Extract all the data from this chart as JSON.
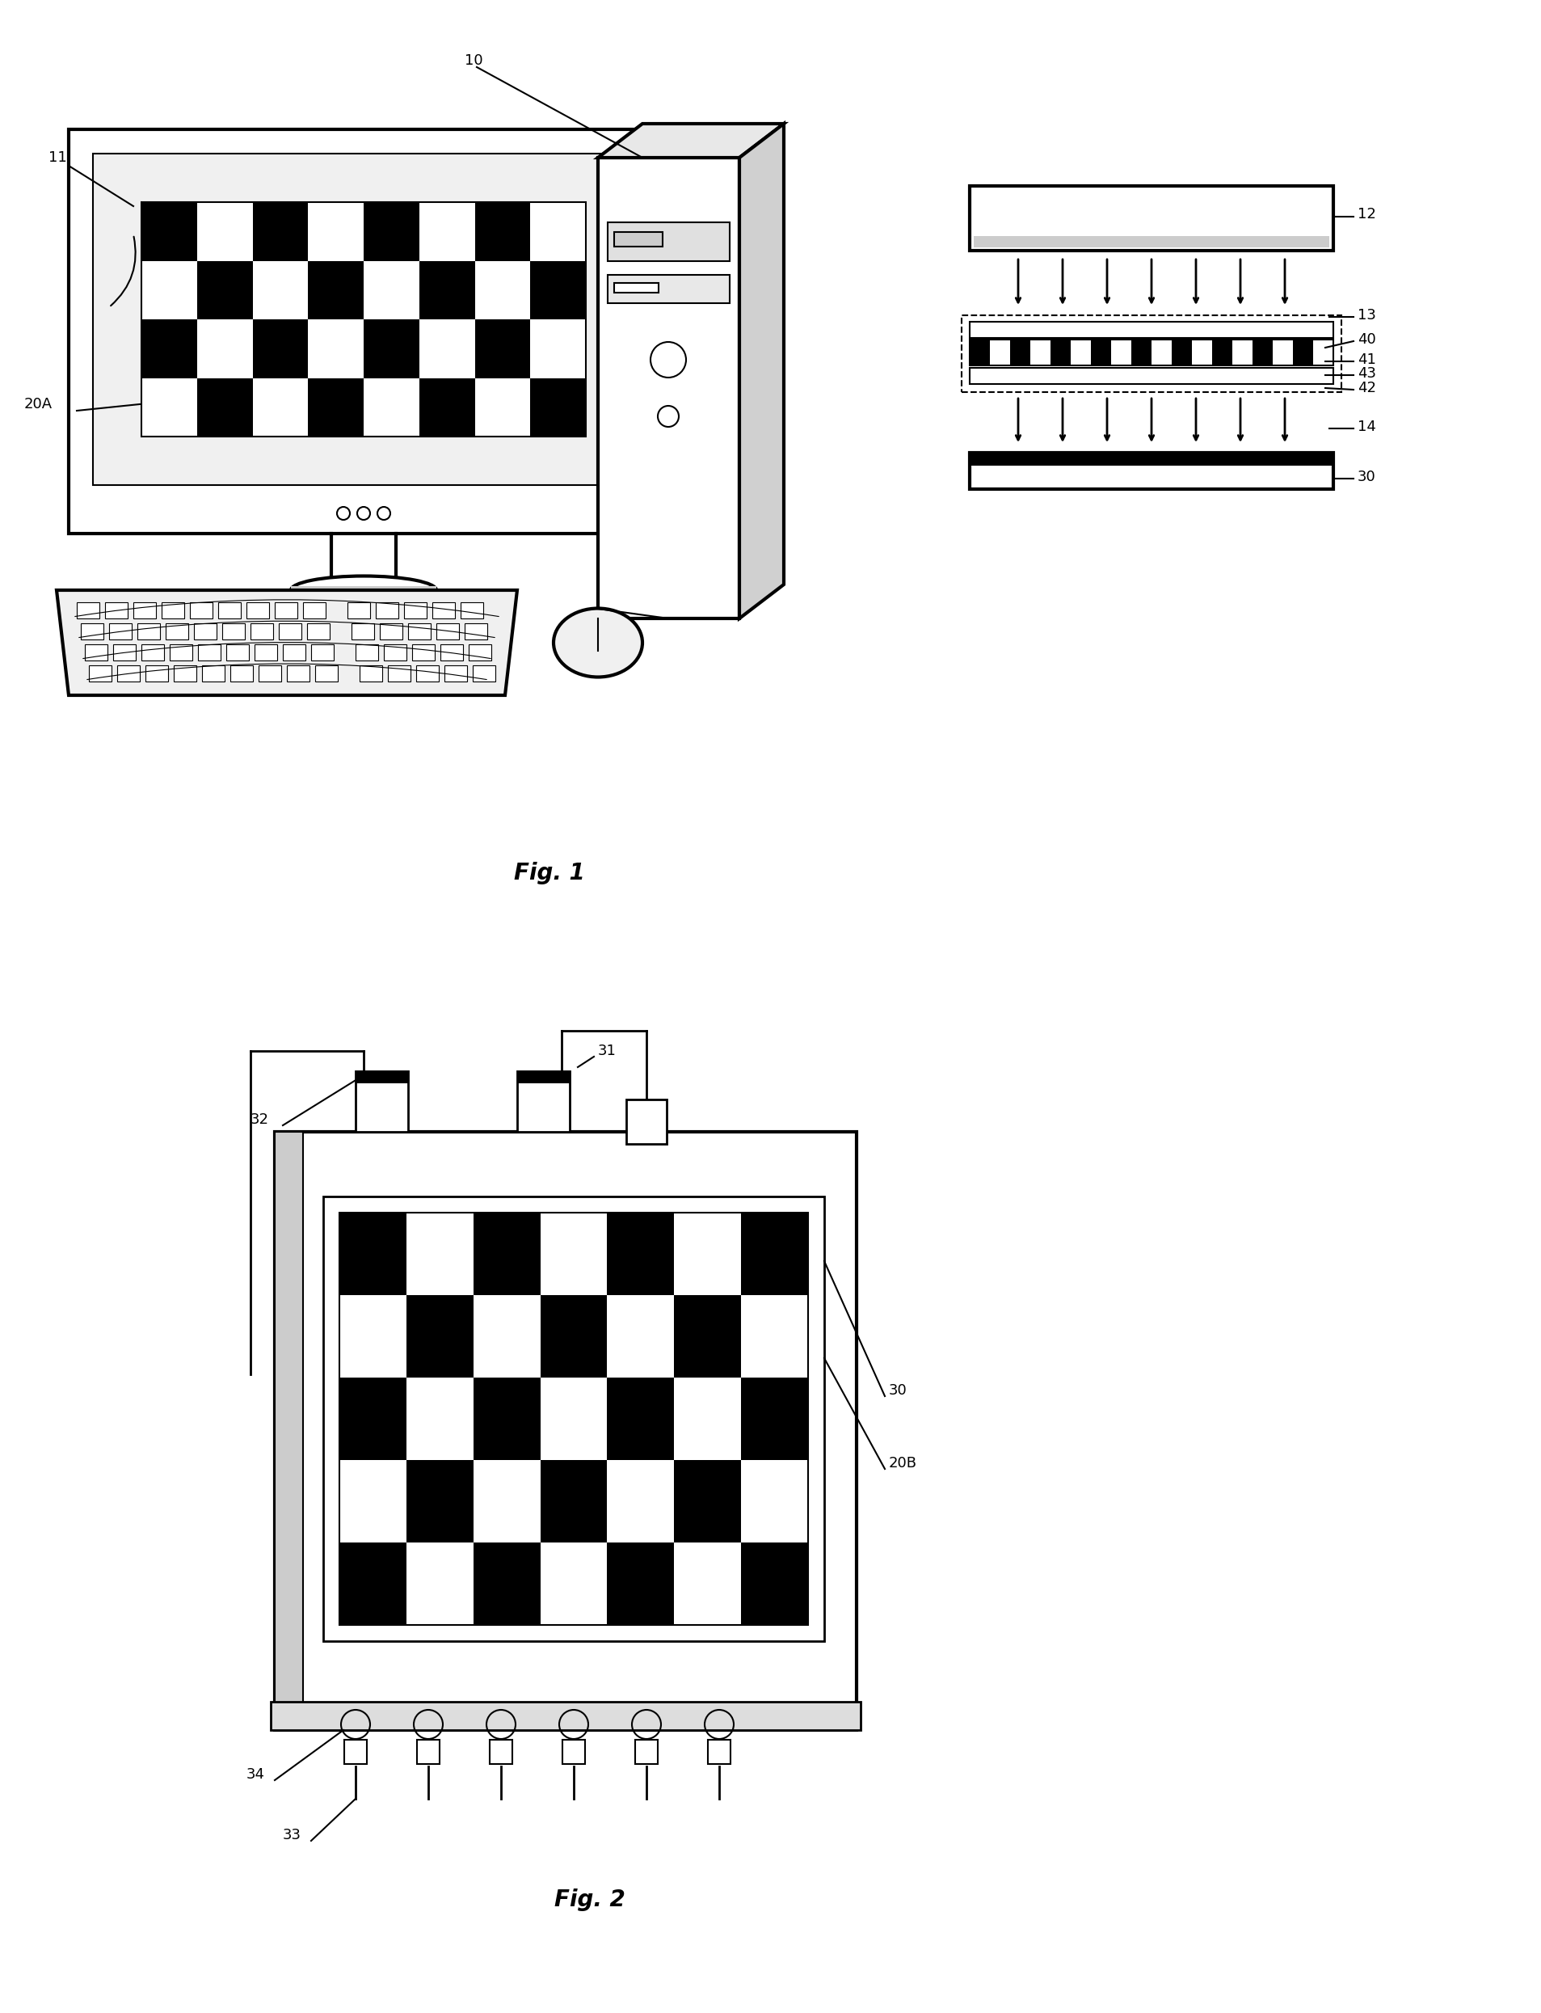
{
  "background_color": "#ffffff",
  "line_color": "#000000",
  "fig1_label": "Fig. 1",
  "fig2_label": "Fig. 2",
  "ann_fs": 13,
  "fig_label_fs": 20
}
